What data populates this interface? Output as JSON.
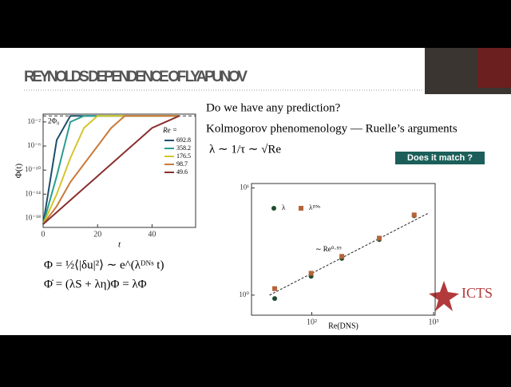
{
  "slide": {
    "title": "REYNOLDS DEPENDENCE OF LYAPUNOV",
    "lines": [
      "Do we have any prediction?",
      "Kolmogorov phenomenology — Ruelle’s arguments",
      "λ ∼ 1/τ ∼ √Re"
    ],
    "button": "Does it match ?",
    "equations": [
      "Φ = ½⟨|δu|²⟩ ∼ e^(λᴰᴺˢ t)",
      "Φ̇ = (λS + λη)Φ = λΦ"
    ],
    "logo": "ICTS"
  },
  "chart_data": [
    {
      "type": "line",
      "xlabel": "t",
      "ylabel": "Φ(t)",
      "legend_title": "Re =",
      "log_y": true,
      "xlim": [
        0,
        56
      ],
      "ylim": [
        3e-20,
        0.2
      ],
      "xticks": [
        0,
        20,
        40
      ],
      "yticks": [
        {
          "value": 0.01,
          "label": "10⁻²"
        },
        {
          "value": 1e-06,
          "label": "10⁻⁶"
        },
        {
          "value": 1e-10,
          "label": "10⁻¹⁰"
        },
        {
          "value": 1e-14,
          "label": "10⁻¹⁴"
        },
        {
          "value": 1e-18,
          "label": "10⁻¹⁸"
        }
      ],
      "reference": {
        "label": "2Φ₀",
        "value": 0.1
      },
      "x": [
        0,
        5,
        10,
        15,
        20,
        25,
        30,
        35,
        40,
        45,
        50
      ],
      "series": [
        {
          "name": "692.8",
          "color": "#1f4e6b",
          "values": [
            1e-19,
            1e-05,
            0.1,
            0.1,
            0.1,
            0.1,
            0.1,
            0.1,
            0.1,
            0.1,
            0.1
          ]
        },
        {
          "name": "358.2",
          "color": "#2a9d8f",
          "values": [
            1e-19,
            1e-11,
            0.01,
            0.1,
            0.1,
            0.1,
            0.1,
            0.1,
            0.1,
            0.1,
            0.1
          ]
        },
        {
          "name": "176.5",
          "color": "#d4c62a",
          "values": [
            1e-19,
            1e-14,
            1e-08,
            0.001,
            0.1,
            0.1,
            0.1,
            0.1,
            0.1,
            0.1,
            0.1
          ]
        },
        {
          "name": "98.7",
          "color": "#c97a3a",
          "values": [
            1e-19,
            1e-16,
            1e-12,
            1e-09,
            1e-06,
            0.001,
            0.1,
            0.1,
            0.1,
            0.1,
            0.1
          ]
        },
        {
          "name": "49.6",
          "color": "#8b2e2e",
          "values": [
            1e-19,
            1e-17,
            1e-15,
            1e-13,
            1e-11,
            1e-09,
            1e-07,
            1e-05,
            0.001,
            0.01,
            0.1
          ]
        }
      ]
    },
    {
      "type": "scatter",
      "xlabel": "Re(DNS)",
      "log_x": true,
      "log_y": true,
      "xlim": [
        32,
        1030
      ],
      "ylim": [
        0.65,
        11
      ],
      "xticks": [
        {
          "value": 100,
          "label": "10²"
        },
        {
          "value": 1000,
          "label": "10³"
        }
      ],
      "yticks": [
        {
          "value": 1,
          "label": "10⁰"
        },
        {
          "value": 10,
          "label": "10¹"
        }
      ],
      "x": [
        49.6,
        98.7,
        176.5,
        358.2,
        692.8
      ],
      "series": [
        {
          "name": "λ",
          "color": "#1d4d2e",
          "values": [
            0.93,
            1.5,
            2.2,
            3.3,
            5.5
          ]
        },
        {
          "name": "λᴰᴺˢ",
          "color": "#b5643a",
          "values": [
            1.15,
            1.6,
            2.3,
            3.4,
            5.6
          ]
        }
      ],
      "fit": {
        "label": "∼ Re⁰·⁵⁹",
        "x": [
          45,
          900
        ],
        "values": [
          1.0,
          5.8
        ]
      }
    }
  ]
}
